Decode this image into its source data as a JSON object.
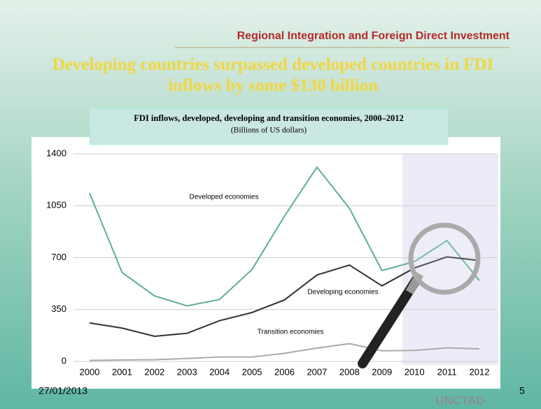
{
  "header": "Regional Integration and Foreign Direct Investment",
  "headline": "Developing countries surpassed developed countries in FDI inflows by some $130 billion",
  "footer": {
    "date": "27/01/2013",
    "page": "5",
    "logo": "UNCTAD"
  },
  "chart_data": {
    "type": "line",
    "title": "FDI inflows, developed, developing and transition economies, 2000–2012",
    "subtitle": "(Billions of US dollars)",
    "categories": [
      "2000",
      "2001",
      "2002",
      "2003",
      "2004",
      "2005",
      "2006",
      "2007",
      "2008",
      "2009",
      "2010",
      "2011",
      "2012"
    ],
    "series": [
      {
        "name": "Developed economies",
        "color": "#5fae94",
        "values": [
          1135,
          600,
          442,
          375,
          418,
          620,
          980,
          1310,
          1032,
          613,
          673,
          815,
          545
        ]
      },
      {
        "name": "Developing economies",
        "color": "#333333",
        "values": [
          260,
          225,
          170,
          190,
          275,
          330,
          415,
          583,
          650,
          510,
          630,
          705,
          680
        ]
      },
      {
        "name": "Transition economies",
        "color": "#aaaaaa",
        "values": [
          7,
          10,
          12,
          20,
          30,
          30,
          55,
          90,
          120,
          72,
          74,
          92,
          85
        ]
      }
    ],
    "ylim": [
      0,
      1400
    ],
    "yticks": [
      0,
      350,
      700,
      1050,
      1400
    ],
    "grid": true
  }
}
